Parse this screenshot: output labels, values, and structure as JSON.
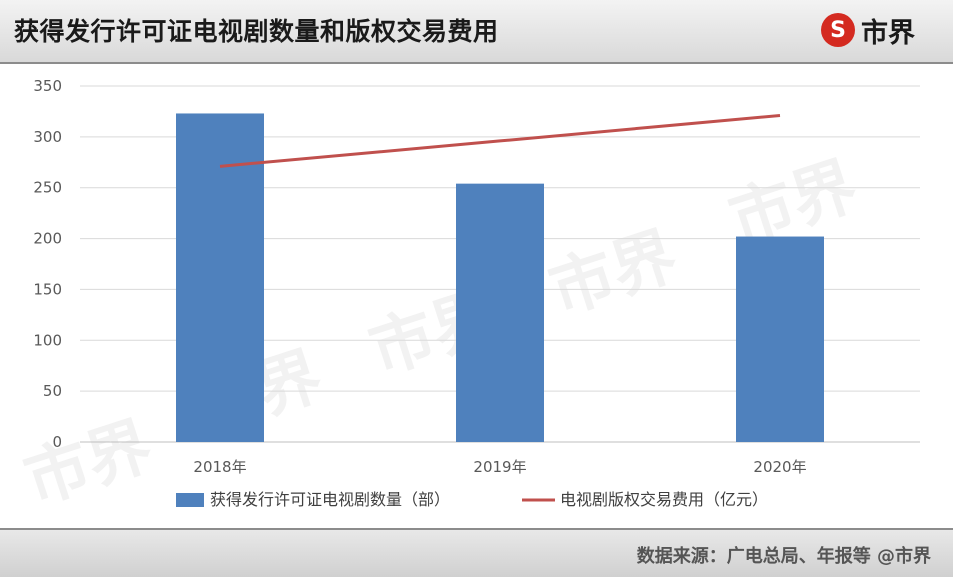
{
  "header": {
    "title": "获得发行许可证电视剧数量和版权交易费用",
    "logo_mark": "S",
    "logo_text": "市界"
  },
  "footer": {
    "source": "数据来源：广电总局、年报等 @市界"
  },
  "watermark": {
    "text": "市界"
  },
  "colors": {
    "bar": "#4f81bd",
    "line": "#c0504d",
    "grid": "#d9d9d9",
    "axis_text": "#595959"
  },
  "chart_data": {
    "type": "bar",
    "categories": [
      "2018年",
      "2019年",
      "2020年"
    ],
    "series": [
      {
        "name": "获得发行许可证电视剧数量（部）",
        "type": "bar",
        "values": [
          323,
          254,
          202
        ]
      },
      {
        "name": "电视剧版权交易费用（亿元）",
        "type": "line",
        "values": [
          271,
          296,
          321
        ]
      }
    ],
    "yticks": [
      "0",
      "50",
      "100",
      "150",
      "200",
      "250",
      "300",
      "350"
    ],
    "ylim": [
      0,
      350
    ],
    "grid": true,
    "legend_position": "bottom"
  }
}
